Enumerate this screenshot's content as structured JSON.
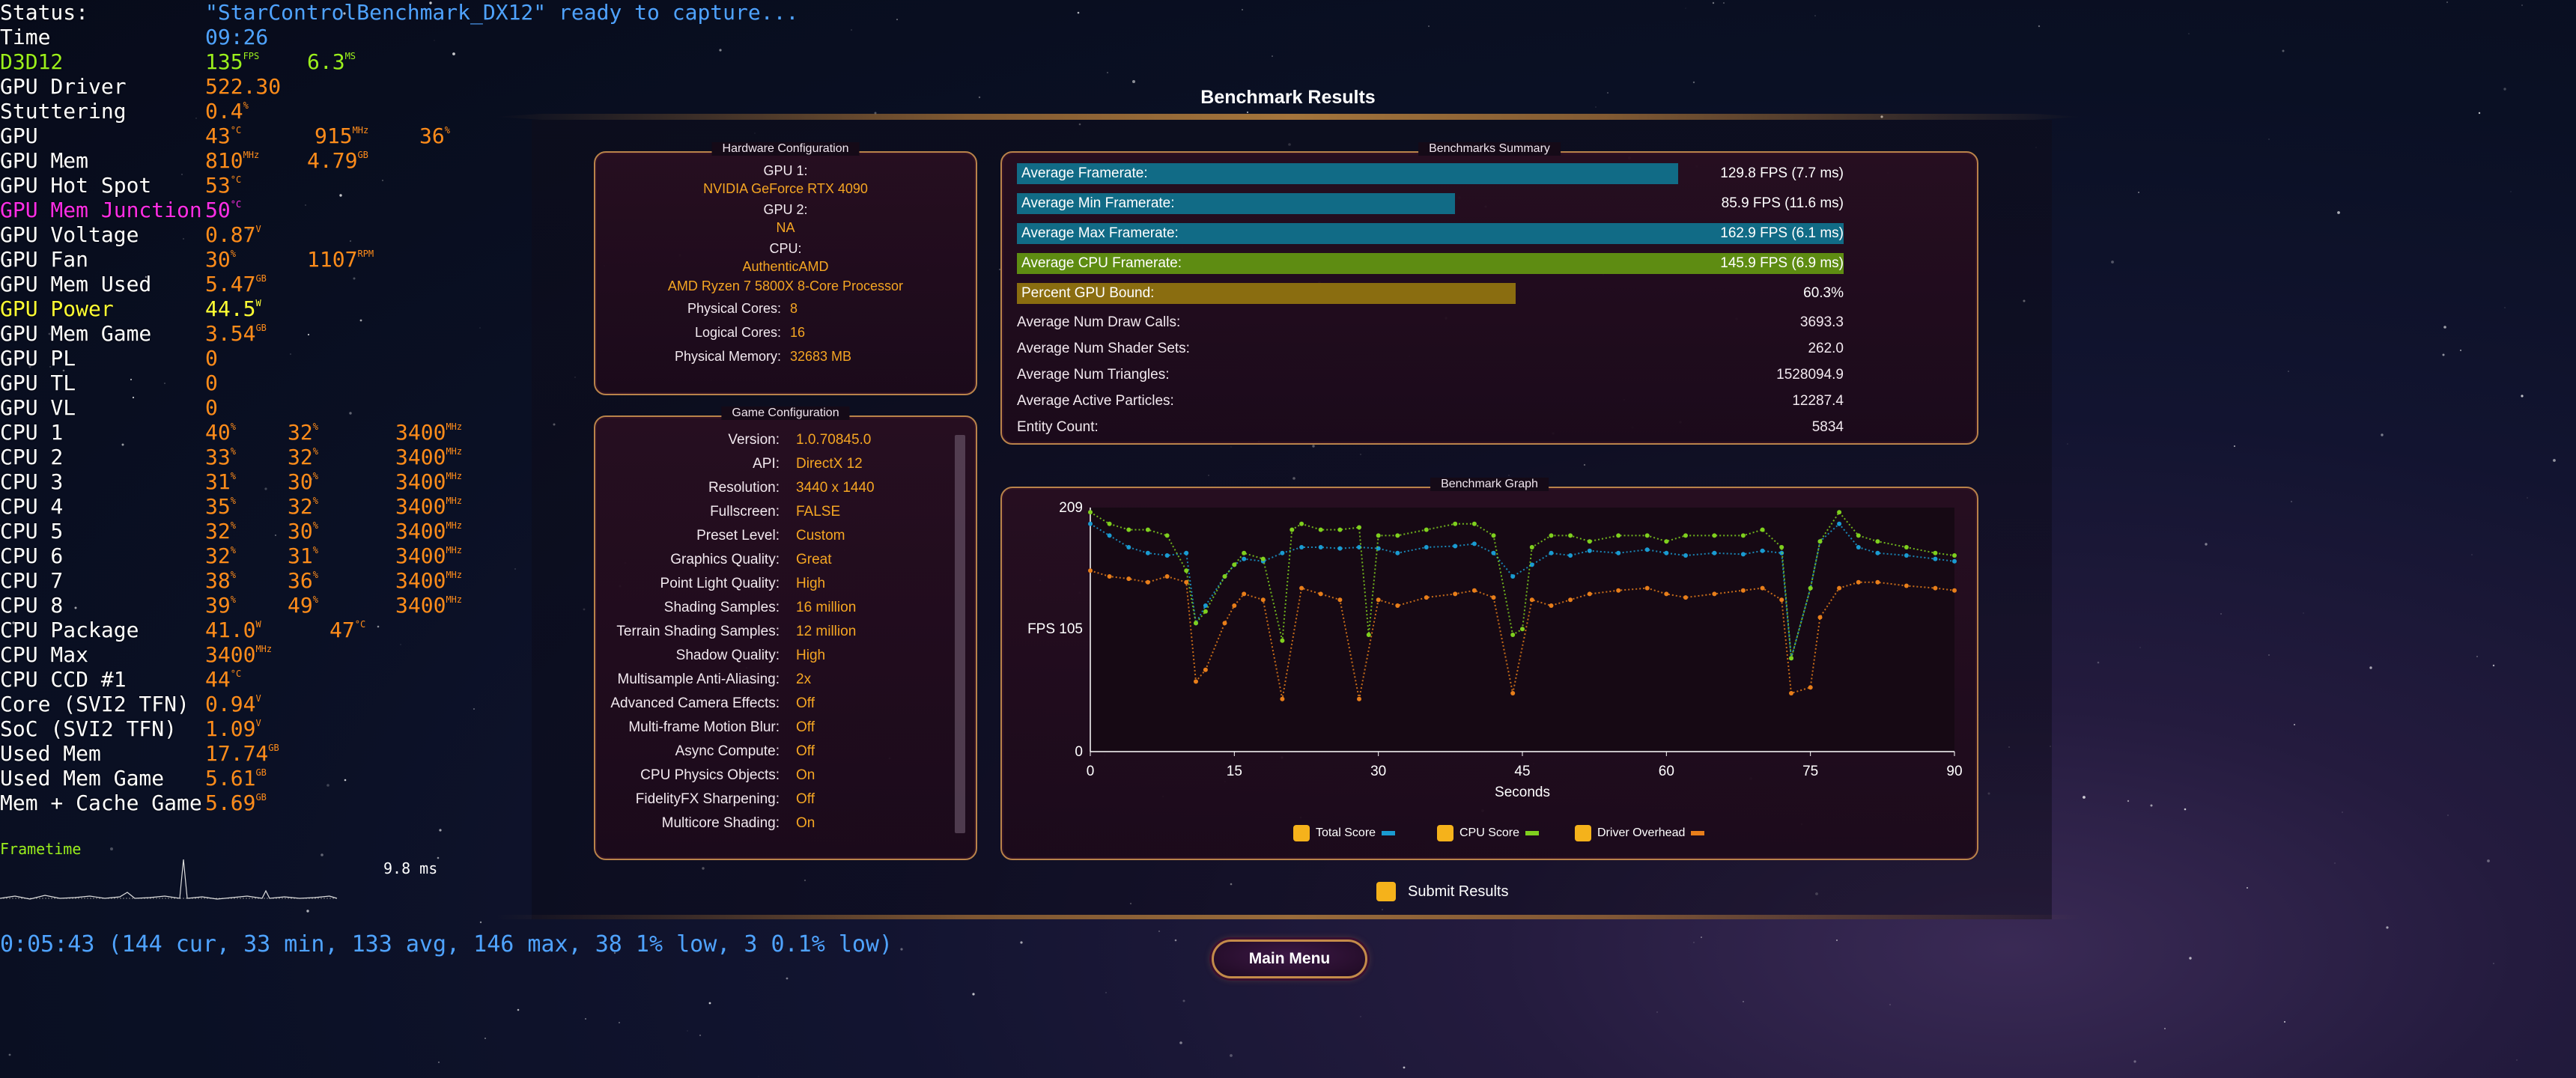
{
  "osd": {
    "status_label": "Status:",
    "status_value": "\"StarControlBenchmark_DX12\" ready to capture...",
    "time_label": "Time",
    "time_value": "09:26",
    "rows": [
      {
        "label": "D3D12",
        "color": "green",
        "values": [
          {
            "v": "135",
            "u": "FPS"
          },
          {
            "v": "6.3",
            "u": "MS"
          }
        ]
      },
      {
        "label": "GPU Driver",
        "values": [
          {
            "v": "522.30",
            "u": ""
          }
        ]
      },
      {
        "label": "Stuttering",
        "values": [
          {
            "v": "0.4",
            "u": "%"
          }
        ]
      },
      {
        "label": "GPU",
        "values": [
          {
            "v": "43",
            "u": "°C"
          },
          {
            "v": "915",
            "u": "MHz"
          },
          {
            "v": "36",
            "u": "%"
          }
        ]
      },
      {
        "label": "GPU Mem",
        "values": [
          {
            "v": "810",
            "u": "MHz"
          },
          {
            "v": "4.79",
            "u": "GB"
          }
        ]
      },
      {
        "label": "GPU Hot Spot",
        "values": [
          {
            "v": "53",
            "u": "°C"
          }
        ]
      },
      {
        "label": "GPU Mem Junction",
        "color": "magenta",
        "values": [
          {
            "v": "50",
            "u": "°C"
          }
        ]
      },
      {
        "label": "GPU Voltage",
        "values": [
          {
            "v": "0.87",
            "u": "V"
          }
        ]
      },
      {
        "label": "GPU Fan",
        "values": [
          {
            "v": "30",
            "u": "%"
          },
          {
            "v": "1107",
            "u": "RPM"
          }
        ]
      },
      {
        "label": "GPU Mem Used",
        "values": [
          {
            "v": "5.47",
            "u": "GB"
          }
        ]
      },
      {
        "label": "GPU Power",
        "color": "yellow",
        "values": [
          {
            "v": "44.5",
            "u": "W"
          }
        ]
      },
      {
        "label": "GPU Mem Game",
        "values": [
          {
            "v": "3.54",
            "u": "GB"
          }
        ]
      },
      {
        "label": "GPU PL",
        "values": [
          {
            "v": "0",
            "u": ""
          }
        ]
      },
      {
        "label": "GPU TL",
        "values": [
          {
            "v": "0",
            "u": ""
          }
        ]
      },
      {
        "label": "GPU VL",
        "values": [
          {
            "v": "0",
            "u": ""
          }
        ]
      },
      {
        "label": "CPU 1",
        "values": [
          {
            "v": "40",
            "u": "%"
          },
          {
            "v": "32",
            "u": "%"
          },
          {
            "v": "3400",
            "u": "MHz"
          }
        ]
      },
      {
        "label": "CPU 2",
        "values": [
          {
            "v": "33",
            "u": "%"
          },
          {
            "v": "32",
            "u": "%"
          },
          {
            "v": "3400",
            "u": "MHz"
          }
        ]
      },
      {
        "label": "CPU 3",
        "values": [
          {
            "v": "31",
            "u": "%"
          },
          {
            "v": "30",
            "u": "%"
          },
          {
            "v": "3400",
            "u": "MHz"
          }
        ]
      },
      {
        "label": "CPU 4",
        "values": [
          {
            "v": "35",
            "u": "%"
          },
          {
            "v": "32",
            "u": "%"
          },
          {
            "v": "3400",
            "u": "MHz"
          }
        ]
      },
      {
        "label": "CPU 5",
        "values": [
          {
            "v": "32",
            "u": "%"
          },
          {
            "v": "30",
            "u": "%"
          },
          {
            "v": "3400",
            "u": "MHz"
          }
        ]
      },
      {
        "label": "CPU 6",
        "values": [
          {
            "v": "32",
            "u": "%"
          },
          {
            "v": "31",
            "u": "%"
          },
          {
            "v": "3400",
            "u": "MHz"
          }
        ]
      },
      {
        "label": "CPU 7",
        "values": [
          {
            "v": "38",
            "u": "%"
          },
          {
            "v": "36",
            "u": "%"
          },
          {
            "v": "3400",
            "u": "MHz"
          }
        ]
      },
      {
        "label": "CPU 8",
        "values": [
          {
            "v": "39",
            "u": "%"
          },
          {
            "v": "49",
            "u": "%"
          },
          {
            "v": "3400",
            "u": "MHz"
          }
        ]
      },
      {
        "label": "CPU Package",
        "values": [
          {
            "v": "41.0",
            "u": "W"
          },
          {
            "v": "47",
            "u": "°C"
          }
        ]
      },
      {
        "label": "CPU Max",
        "values": [
          {
            "v": "3400",
            "u": "MHz"
          }
        ]
      },
      {
        "label": "CPU CCD #1",
        "values": [
          {
            "v": "44",
            "u": "°C"
          }
        ]
      },
      {
        "label": "Core (SVI2 TFN)",
        "values": [
          {
            "v": "0.94",
            "u": "V"
          }
        ]
      },
      {
        "label": "SoC (SVI2 TFN)",
        "values": [
          {
            "v": "1.09",
            "u": "V"
          }
        ]
      },
      {
        "label": "Used Mem",
        "values": [
          {
            "v": "17.74",
            "u": "GB"
          }
        ]
      },
      {
        "label": "Used Mem Game",
        "values": [
          {
            "v": "5.61",
            "u": "GB"
          }
        ]
      },
      {
        "label": "Mem + Cache Game",
        "values": [
          {
            "v": "5.69",
            "u": "GB"
          }
        ]
      }
    ],
    "frametime_label": "Frametime",
    "frametime_value": "9.8 ms",
    "summary": "0:05:43 (144 cur, 33 min, 133 avg, 146 max, 38 1% low, 3 0.1% low)"
  },
  "window": {
    "title": "Benchmark Results",
    "main_menu_label": "Main Menu",
    "submit_label": "Submit Results"
  },
  "hardware": {
    "title": "Hardware Configuration",
    "gpu1_label": "GPU 1:",
    "gpu1_value": "NVIDIA GeForce RTX 4090",
    "gpu2_label": "GPU 2:",
    "gpu2_value": "NA",
    "cpu_label": "CPU:",
    "cpu_vendor": "AuthenticAMD",
    "cpu_name": "AMD Ryzen 7 5800X 8-Core Processor",
    "physical_cores_label": "Physical Cores:",
    "physical_cores_value": "8",
    "logical_cores_label": "Logical Cores:",
    "logical_cores_value": "16",
    "physical_memory_label": "Physical Memory:",
    "physical_memory_value": "32683  MB"
  },
  "game_config": {
    "title": "Game Configuration",
    "rows": [
      {
        "label": "Version:",
        "value": "1.0.70845.0"
      },
      {
        "label": "API:",
        "value": "DirectX 12"
      },
      {
        "label": "Resolution:",
        "value": "3440 x 1440"
      },
      {
        "label": "Fullscreen:",
        "value": "FALSE"
      },
      {
        "label": "Preset Level:",
        "value": "Custom"
      },
      {
        "label": "Graphics Quality:",
        "value": "Great"
      },
      {
        "label": "Point Light Quality:",
        "value": "High"
      },
      {
        "label": "Shading Samples:",
        "value": "16 million"
      },
      {
        "label": "Terrain Shading Samples:",
        "value": "12 million"
      },
      {
        "label": "Shadow Quality:",
        "value": "High"
      },
      {
        "label": "Multisample Anti-Aliasing:",
        "value": "2x"
      },
      {
        "label": "Advanced Camera Effects:",
        "value": "Off"
      },
      {
        "label": "Multi-frame Motion Blur:",
        "value": "Off"
      },
      {
        "label": "Async Compute:",
        "value": "Off"
      },
      {
        "label": "CPU Physics Objects:",
        "value": "On"
      },
      {
        "label": "FidelityFX Sharpening:",
        "value": "Off"
      },
      {
        "label": "Multicore Shading:",
        "value": "On"
      }
    ]
  },
  "summary": {
    "title": "Benchmarks Summary",
    "bars": [
      {
        "label": "Average Framerate:",
        "value": "129.8 FPS (7.7 ms)",
        "fraction": 0.8,
        "color": "#116b86"
      },
      {
        "label": "Average Min Framerate:",
        "value": "85.9 FPS (11.6 ms)",
        "fraction": 0.53,
        "color": "#116b86"
      },
      {
        "label": "Average Max Framerate:",
        "value": "162.9 FPS (6.1 ms)",
        "fraction": 1.0,
        "color": "#116b86"
      },
      {
        "label": "Average CPU Framerate:",
        "value": "145.9 FPS (6.9 ms)",
        "fraction": 1.0,
        "color": "#5e8c12"
      },
      {
        "label": "Percent GPU Bound:",
        "value": "60.3%",
        "fraction": 0.603,
        "color": "#8a6d10"
      }
    ],
    "stats": [
      {
        "label": "Average Num Draw Calls:",
        "value": "3693.3"
      },
      {
        "label": "Average Num Shader Sets:",
        "value": "262.0"
      },
      {
        "label": "Average Num Triangles:",
        "value": "1528094.9"
      },
      {
        "label": "Average Active Particles:",
        "value": "12287.4"
      },
      {
        "label": "Entity Count:",
        "value": "5834"
      }
    ]
  },
  "graph_panel": {
    "title": "Benchmark Graph",
    "legend": [
      {
        "label": "Total Score",
        "color": "#1a9bd1"
      },
      {
        "label": "CPU Score",
        "color": "#7fd01e"
      },
      {
        "label": "Driver Overhead",
        "color": "#e87e1a"
      }
    ]
  },
  "chart_data": {
    "type": "scatter",
    "xlabel": "Seconds",
    "ylabel": "FPS",
    "xlim": [
      0,
      90
    ],
    "ylim": [
      0,
      209
    ],
    "x_ticks": [
      0,
      15,
      30,
      45,
      60,
      75,
      90
    ],
    "y_ticks": [
      {
        "value": 0,
        "label": "0"
      },
      {
        "value": 105,
        "label": "FPS 105"
      },
      {
        "value": 209,
        "label": "209"
      }
    ],
    "series": [
      {
        "name": "Total Score",
        "color": "#1a9bd1",
        "x": [
          0,
          2,
          4,
          6,
          8,
          10,
          11,
          12,
          14,
          15,
          16,
          18,
          20,
          22,
          24,
          26,
          28,
          30,
          32,
          35,
          38,
          40,
          42,
          44,
          46,
          48,
          50,
          52,
          55,
          58,
          60,
          62,
          65,
          68,
          70,
          72,
          73,
          75,
          76,
          78,
          80,
          82,
          85,
          88,
          90
        ],
        "y": [
          195,
          185,
          175,
          170,
          168,
          170,
          110,
          125,
          150,
          160,
          165,
          163,
          170,
          175,
          175,
          174,
          175,
          174,
          170,
          175,
          176,
          178,
          170,
          150,
          160,
          170,
          168,
          172,
          170,
          173,
          170,
          168,
          170,
          169,
          172,
          170,
          80,
          140,
          180,
          195,
          175,
          170,
          168,
          165,
          163
        ]
      },
      {
        "name": "CPU Score",
        "color": "#7fd01e",
        "x": [
          0,
          2,
          4,
          6,
          8,
          10,
          11,
          12,
          14,
          15,
          16,
          18,
          20,
          21,
          22,
          24,
          26,
          28,
          29,
          30,
          32,
          35,
          38,
          40,
          42,
          44,
          45,
          46,
          48,
          50,
          52,
          55,
          58,
          60,
          62,
          65,
          68,
          70,
          72,
          73,
          75,
          76,
          78,
          80,
          82,
          85,
          88,
          90
        ],
        "y": [
          205,
          195,
          190,
          190,
          185,
          155,
          110,
          120,
          150,
          160,
          170,
          165,
          95,
          190,
          195,
          190,
          190,
          192,
          100,
          185,
          185,
          190,
          195,
          195,
          185,
          100,
          105,
          175,
          185,
          185,
          180,
          185,
          185,
          180,
          185,
          185,
          185,
          190,
          175,
          80,
          140,
          180,
          205,
          185,
          180,
          175,
          170,
          168
        ]
      },
      {
        "name": "Driver Overhead",
        "color": "#e87e1a",
        "x": [
          0,
          2,
          4,
          6,
          8,
          10,
          11,
          12,
          14,
          15,
          16,
          18,
          20,
          22,
          24,
          26,
          28,
          30,
          32,
          35,
          38,
          40,
          42,
          44,
          46,
          48,
          50,
          52,
          55,
          58,
          60,
          62,
          65,
          68,
          70,
          72,
          73,
          75,
          76,
          78,
          80,
          82,
          85,
          88,
          90
        ],
        "y": [
          155,
          150,
          148,
          145,
          150,
          145,
          60,
          70,
          110,
          125,
          135,
          130,
          45,
          140,
          135,
          130,
          45,
          130,
          125,
          132,
          135,
          138,
          132,
          50,
          130,
          125,
          130,
          135,
          138,
          140,
          135,
          132,
          135,
          138,
          140,
          130,
          50,
          55,
          115,
          140,
          145,
          145,
          142,
          140,
          138
        ]
      }
    ]
  }
}
